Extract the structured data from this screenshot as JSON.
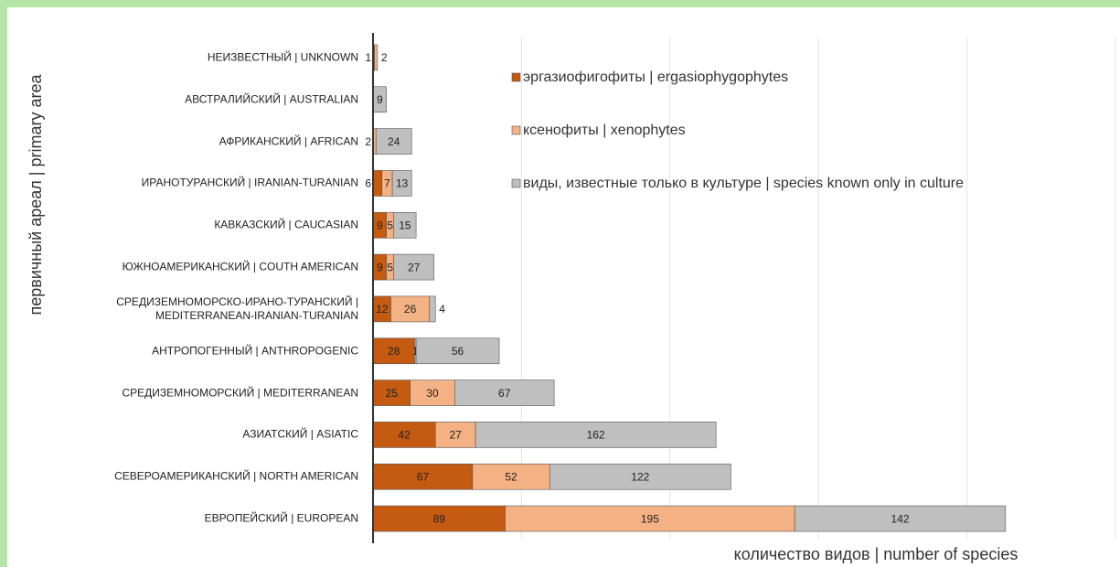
{
  "chart_data": {
    "type": "stacked_barh",
    "x_axis_label": "количество видов  | number of species",
    "y_axis_label": "первичный ареал | primary area",
    "categories": [
      "НЕИЗВЕСТНЫЙ | UNKNOWN",
      "АВСТРАЛИЙСКИЙ | AUSTRALIAN",
      "АФРИКАНСКИЙ | AFRICAN",
      "ИРАНОТУРАНСКИЙ | IRANIAN-TURANIAN",
      "КАВКАЗСКИЙ | CAUCASIAN",
      "ЮЖНОАМЕРИКАНСКИЙ | COUTH AMERICAN",
      "СРЕДИЗЕМНОМОРСКО-ИРАНО-ТУРАНСКИЙ | MEDITERRANEAN-IRANIAN-TURANIAN",
      "АНТРОПОГЕННЫЙ | ANTHROPOGENIC",
      "СРЕДИЗЕМНОМОРСКИЙ | MEDITERRANEAN",
      "АЗИАТСКИЙ | ASIATIC",
      "СЕВЕРОАМЕРИКАНСКИЙ | NORTH AMERICAN",
      "ЕВРОПЕЙСКИЙ | EUROPEAN"
    ],
    "series": [
      {
        "name": "эргазиофигофиты | ergasiophygophytes",
        "color": "#c55a11",
        "values": [
          1,
          null,
          null,
          6,
          9,
          9,
          12,
          28,
          25,
          42,
          67,
          89
        ]
      },
      {
        "name": "ксенофиты | xenophytes",
        "color": "#f4b183",
        "values": [
          2,
          null,
          2,
          7,
          5,
          5,
          26,
          1,
          30,
          27,
          52,
          195
        ]
      },
      {
        "name": "виды, известные только в культуре | species known only in culture",
        "color": "#bfbfbf",
        "values": [
          null,
          9,
          24,
          13,
          15,
          27,
          4,
          56,
          67,
          162,
          122,
          142
        ]
      }
    ],
    "xlim": [
      0,
      500
    ],
    "xticks": [
      0,
      100,
      200,
      300,
      400,
      500
    ],
    "grid": true
  }
}
